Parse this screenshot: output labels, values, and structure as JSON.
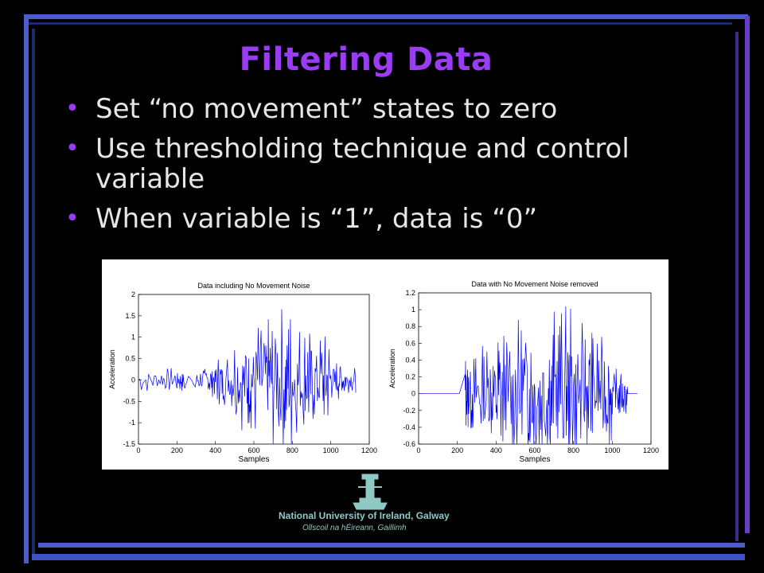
{
  "theme": {
    "background": "#000000",
    "title_color": "#9b3cf5",
    "text_color": "#e6e6e6",
    "frame_light": "#4a5fc9",
    "frame_dark": "#1b2a6a",
    "frame_purple": "#6b3cc9",
    "plot_line": "#0000ff"
  },
  "slide": {
    "title": "Filtering Data",
    "bullets": [
      "Set “no movement” states to zero",
      "Use thresholding technique and control variable",
      "When variable is “1”, data is “0”"
    ]
  },
  "logo": {
    "name": "National University of Ireland, Galway",
    "subtitle": "Ollscoil na hÉireann, Gaillimh",
    "icon": "university-tower-crest"
  },
  "chart_data": [
    {
      "type": "line",
      "title": "Data including No Movement Noise",
      "xlabel": "Samples",
      "ylabel": "Acceleration",
      "xlim": [
        0,
        1200
      ],
      "ylim": [
        -1.5,
        2
      ],
      "xticks": [
        "0",
        "200",
        "400",
        "600",
        "800",
        "1000",
        "1200"
      ],
      "yticks": [
        "-1.5",
        "-1",
        "-0.5",
        "0",
        "0.5",
        "1",
        "1.5",
        "2"
      ],
      "series": [
        {
          "x": [
            0,
            120,
            200,
            240,
            260,
            300,
            360,
            400,
            440,
            500,
            560,
            600,
            660,
            700,
            760,
            800,
            860,
            900,
            960,
            1000,
            1040,
            1080,
            1130
          ],
          "y": [
            -0.3,
            -0.28,
            -0.3,
            -0.2,
            0.1,
            -0.2,
            0.3,
            -0.4,
            0.6,
            -0.7,
            1.2,
            -1.0,
            1.5,
            -0.9,
            1.8,
            -0.8,
            1.4,
            -0.7,
            1.1,
            -0.5,
            0.5,
            -0.2,
            -0.3
          ],
          "color": "#0000ff"
        }
      ],
      "grid": false
    },
    {
      "type": "line",
      "title": "Data with No Movement Noise removed",
      "xlabel": "Samples",
      "ylabel": "Acceleration",
      "xlim": [
        0,
        1200
      ],
      "ylim": [
        -0.6,
        1.2
      ],
      "xticks": [
        "0",
        "200",
        "400",
        "600",
        "800",
        "1000",
        "1200"
      ],
      "yticks": [
        "-0.6",
        "-0.4",
        "-0.2",
        "0",
        "0.2",
        "0.4",
        "0.6",
        "0.8",
        "1",
        "1.2"
      ],
      "series": [
        {
          "x": [
            0,
            240,
            260,
            300,
            360,
            400,
            440,
            500,
            560,
            600,
            660,
            700,
            760,
            800,
            860,
            900,
            960,
            1000,
            1040,
            1080,
            1130
          ],
          "y": [
            0,
            0,
            0.5,
            -0.3,
            0.6,
            -0.4,
            0.8,
            -0.45,
            0.9,
            -0.5,
            1.0,
            -0.5,
            1.05,
            -0.45,
            0.85,
            -0.4,
            0.7,
            -0.3,
            0.3,
            0,
            0
          ],
          "color": "#0000ff"
        }
      ],
      "grid": false
    }
  ]
}
